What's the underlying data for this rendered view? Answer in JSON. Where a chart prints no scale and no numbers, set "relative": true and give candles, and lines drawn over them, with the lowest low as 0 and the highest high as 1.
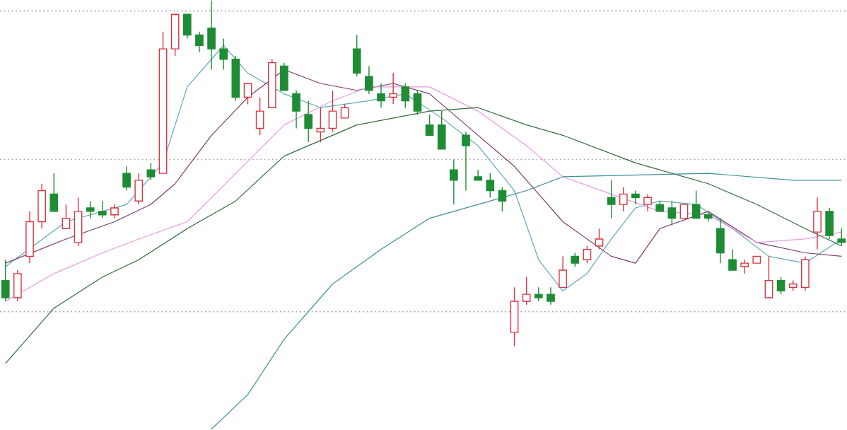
{
  "chart_data": {
    "type": "candlestick",
    "relative": true,
    "categories": [
      null,
      null,
      null,
      null,
      null,
      null,
      null,
      null,
      null,
      null,
      null,
      null,
      null,
      null,
      null,
      null,
      null,
      null,
      null,
      null,
      null,
      null,
      null,
      null,
      null,
      null,
      null,
      null,
      null,
      null,
      null,
      null,
      null,
      null,
      null,
      null,
      null,
      null,
      null,
      null,
      null,
      null,
      null,
      null,
      null,
      null,
      null,
      null,
      null,
      null,
      null,
      null,
      null,
      null,
      null,
      null,
      null,
      null,
      null,
      null,
      null,
      null,
      null,
      null,
      null,
      null,
      null,
      null,
      null,
      null
    ],
    "ohlc": [
      [
        0.19,
        0.25,
        0.13,
        0.14
      ],
      [
        0.14,
        0.22,
        0.13,
        0.21
      ],
      [
        0.26,
        0.39,
        0.24,
        0.36
      ],
      [
        0.36,
        0.47,
        0.34,
        0.45
      ],
      [
        0.44,
        0.5,
        0.39,
        0.39
      ],
      [
        0.34,
        0.41,
        0.34,
        0.37
      ],
      [
        0.3,
        0.43,
        0.29,
        0.39
      ],
      [
        0.4,
        0.42,
        0.37,
        0.39
      ],
      [
        0.39,
        0.42,
        0.37,
        0.38
      ],
      [
        0.38,
        0.41,
        0.37,
        0.4
      ],
      [
        0.5,
        0.52,
        0.45,
        0.46
      ],
      [
        0.42,
        0.5,
        0.41,
        0.48
      ],
      [
        0.51,
        0.53,
        0.48,
        0.49
      ],
      [
        0.5,
        0.91,
        0.5,
        0.86
      ],
      [
        0.86,
        0.96,
        0.84,
        0.96
      ],
      [
        0.96,
        0.96,
        0.89,
        0.9
      ],
      [
        0.9,
        0.91,
        0.85,
        0.87
      ],
      [
        0.92,
        1.0,
        0.8,
        0.86
      ],
      [
        0.86,
        0.89,
        0.8,
        0.83
      ],
      [
        0.83,
        0.84,
        0.71,
        0.72
      ],
      [
        0.72,
        0.76,
        0.7,
        0.76
      ],
      [
        0.63,
        0.72,
        0.61,
        0.68
      ],
      [
        0.69,
        0.83,
        0.69,
        0.82
      ],
      [
        0.81,
        0.82,
        0.74,
        0.74
      ],
      [
        0.73,
        0.74,
        0.63,
        0.68
      ],
      [
        0.67,
        0.71,
        0.59,
        0.63
      ],
      [
        0.62,
        0.69,
        0.59,
        0.63
      ],
      [
        0.63,
        0.74,
        0.62,
        0.68
      ],
      [
        0.66,
        0.7,
        0.66,
        0.69
      ],
      [
        0.86,
        0.9,
        0.78,
        0.79
      ],
      [
        0.78,
        0.81,
        0.73,
        0.74
      ],
      [
        0.73,
        0.76,
        0.69,
        0.71
      ],
      [
        0.72,
        0.79,
        0.7,
        0.73
      ],
      [
        0.75,
        0.76,
        0.69,
        0.71
      ],
      [
        0.73,
        0.74,
        0.67,
        0.68
      ],
      [
        0.64,
        0.67,
        0.61,
        0.61
      ],
      [
        0.64,
        0.68,
        0.57,
        0.57
      ],
      [
        0.51,
        0.54,
        0.41,
        0.48
      ],
      [
        0.61,
        0.62,
        0.45,
        0.58
      ],
      [
        0.49,
        0.51,
        0.48,
        0.48
      ],
      [
        0.48,
        0.5,
        0.43,
        0.45
      ],
      [
        0.45,
        0.46,
        0.39,
        0.42
      ],
      [
        0.04,
        0.17,
        0.0,
        0.13
      ],
      [
        0.13,
        0.2,
        0.12,
        0.15
      ],
      [
        0.15,
        0.17,
        0.13,
        0.14
      ],
      [
        0.15,
        0.17,
        0.12,
        0.13
      ],
      [
        0.17,
        0.26,
        0.17,
        0.22
      ],
      [
        0.26,
        0.27,
        0.23,
        0.24
      ],
      [
        0.25,
        0.29,
        0.24,
        0.28
      ],
      [
        0.29,
        0.34,
        0.28,
        0.31
      ],
      [
        0.43,
        0.48,
        0.37,
        0.41
      ],
      [
        0.41,
        0.46,
        0.39,
        0.44
      ],
      [
        0.44,
        0.45,
        0.41,
        0.43
      ],
      [
        0.41,
        0.44,
        0.39,
        0.43
      ],
      [
        0.41,
        0.42,
        0.39,
        0.39
      ],
      [
        0.4,
        0.42,
        0.35,
        0.37
      ],
      [
        0.37,
        0.41,
        0.37,
        0.41
      ],
      [
        0.41,
        0.45,
        0.37,
        0.37
      ],
      [
        0.38,
        0.39,
        0.36,
        0.37
      ],
      [
        0.34,
        0.37,
        0.24,
        0.27
      ],
      [
        0.25,
        0.28,
        0.22,
        0.22
      ],
      [
        0.23,
        0.25,
        0.21,
        0.24
      ],
      [
        0.24,
        0.26,
        0.24,
        0.26
      ],
      [
        0.14,
        0.26,
        0.14,
        0.19
      ],
      [
        0.19,
        0.2,
        0.15,
        0.16
      ],
      [
        0.17,
        0.19,
        0.16,
        0.18
      ],
      [
        0.17,
        0.26,
        0.16,
        0.25
      ],
      [
        0.33,
        0.43,
        0.28,
        0.39
      ],
      [
        0.39,
        0.4,
        0.31,
        0.32
      ],
      [
        0.31,
        0.34,
        0.29,
        0.3
      ]
    ],
    "colors": [
      "#1e8c34",
      "#d9343f",
      "#d9343f",
      "#d9343f",
      "#1e8c34",
      "#d9343f",
      "#d9343f",
      "#1e8c34",
      "#1e8c34",
      "#d9343f",
      "#1e8c34",
      "#d9343f",
      "#1e8c34",
      "#d9343f",
      "#d9343f",
      "#1e8c34",
      "#1e8c34",
      "#1e8c34",
      "#1e8c34",
      "#1e8c34",
      "#d9343f",
      "#d9343f",
      "#d9343f",
      "#1e8c34",
      "#1e8c34",
      "#1e8c34",
      "#d9343f",
      "#d9343f",
      "#d9343f",
      "#1e8c34",
      "#1e8c34",
      "#1e8c34",
      "#d9343f",
      "#1e8c34",
      "#1e8c34",
      "#1e8c34",
      "#1e8c34",
      "#1e8c34",
      "#1e8c34",
      "#1e8c34",
      "#1e8c34",
      "#1e8c34",
      "#d9343f",
      "#d9343f",
      "#1e8c34",
      "#1e8c34",
      "#d9343f",
      "#1e8c34",
      "#d9343f",
      "#d9343f",
      "#1e8c34",
      "#d9343f",
      "#1e8c34",
      "#d9343f",
      "#1e8c34",
      "#1e8c34",
      "#d9343f",
      "#1e8c34",
      "#1e8c34",
      "#1e8c34",
      "#1e8c34",
      "#d9343f",
      "#d9343f",
      "#d9343f",
      "#1e8c34",
      "#d9343f",
      "#d9343f",
      "#d9343f",
      "#1e8c34",
      "#1e8c34"
    ],
    "series": [
      {
        "type": "line",
        "color": "#5fa8b8",
        "values": [
          0.23,
          null,
          null,
          null,
          null,
          0.36,
          null,
          null,
          null,
          null,
          0.41,
          null,
          null,
          0.53,
          null,
          0.75,
          null,
          null,
          0.87,
          null,
          0.79,
          null,
          null,
          0.73,
          null,
          null,
          0.69,
          null,
          null,
          null,
          0.71,
          null,
          null,
          0.73,
          null,
          null,
          0.66,
          null,
          null,
          0.58,
          null,
          null,
          0.45,
          null,
          0.25,
          null,
          0.16,
          null,
          0.21,
          null,
          0.31,
          null,
          0.4,
          null,
          0.42,
          null,
          null,
          0.41,
          null,
          null,
          0.34,
          null,
          null,
          0.26,
          null,
          null,
          0.24,
          null,
          null,
          0.31
        ]
      },
      {
        "type": "line",
        "color": "#7a3a6e",
        "values": [
          0.24,
          null,
          null,
          null,
          null,
          0.31,
          null,
          null,
          null,
          0.36,
          null,
          null,
          0.41,
          null,
          0.47,
          null,
          null,
          0.61,
          null,
          null,
          0.72,
          null,
          null,
          0.8,
          null,
          null,
          0.76,
          null,
          null,
          0.74,
          null,
          null,
          0.76,
          null,
          null,
          0.73,
          null,
          null,
          0.64,
          null,
          null,
          null,
          0.52,
          null,
          null,
          null,
          0.36,
          null,
          null,
          null,
          0.26,
          null,
          0.24,
          null,
          0.34,
          null,
          null,
          null,
          0.39,
          null,
          null,
          null,
          0.3,
          null,
          null,
          null,
          0.27,
          null,
          null,
          0.26
        ]
      },
      {
        "type": "line",
        "color": "#e59ce0",
        "values": [
          0.13,
          null,
          null,
          null,
          0.21,
          null,
          null,
          null,
          0.27,
          null,
          null,
          0.31,
          null,
          null,
          null,
          0.36,
          null,
          null,
          null,
          0.5,
          null,
          null,
          null,
          0.64,
          null,
          null,
          null,
          0.71,
          null,
          null,
          0.75,
          null,
          null,
          null,
          null,
          0.75,
          null,
          null,
          null,
          0.68,
          null,
          null,
          null,
          0.58,
          null,
          null,
          0.49,
          null,
          null,
          null,
          null,
          null,
          null,
          null,
          0.39,
          null,
          null,
          null,
          0.38,
          null,
          null,
          null,
          0.3,
          null,
          null,
          null,
          0.31,
          null,
          null,
          0.33
        ]
      },
      {
        "type": "line",
        "color": "#2e6b3a",
        "values": [
          -0.05,
          null,
          null,
          null,
          0.11,
          null,
          null,
          null,
          0.2,
          null,
          null,
          0.25,
          null,
          null,
          null,
          0.34,
          null,
          null,
          null,
          0.42,
          null,
          null,
          null,
          0.55,
          null,
          null,
          null,
          null,
          null,
          0.64,
          null,
          null,
          null,
          null,
          null,
          0.68,
          null,
          null,
          null,
          0.69,
          null,
          null,
          null,
          0.64,
          null,
          null,
          0.61,
          null,
          null,
          null,
          null,
          null,
          0.53,
          null,
          null,
          null,
          null,
          null,
          0.47,
          null,
          null,
          null,
          0.41,
          null,
          null,
          null,
          0.34,
          null,
          null,
          0.29
        ]
      },
      {
        "type": "line",
        "color": "#3d8f99",
        "values": [
          null,
          null,
          null,
          null,
          null,
          null,
          null,
          null,
          null,
          null,
          null,
          null,
          null,
          null,
          null,
          null,
          null,
          -0.24,
          null,
          null,
          -0.14,
          null,
          null,
          0.02,
          null,
          null,
          null,
          0.18,
          null,
          null,
          null,
          0.28,
          null,
          null,
          null,
          0.37,
          null,
          null,
          null,
          0.41,
          null,
          null,
          null,
          0.45,
          null,
          null,
          0.49,
          null,
          null,
          null,
          null,
          null,
          null,
          null,
          null,
          null,
          null,
          null,
          0.5,
          null,
          null,
          null,
          null,
          null,
          null,
          0.48,
          null,
          null,
          null,
          0.48
        ]
      }
    ],
    "ref_lines": [
      {
        "axis": "y",
        "value": 0.97,
        "color": "#9e9e9e",
        "line_style": "dotted"
      },
      {
        "axis": "y",
        "value": 0.54,
        "color": "#9e9e9e",
        "line_style": "dotted"
      },
      {
        "axis": "y",
        "value": 0.1,
        "color": "#9e9e9e",
        "line_style": "dotted"
      }
    ]
  }
}
